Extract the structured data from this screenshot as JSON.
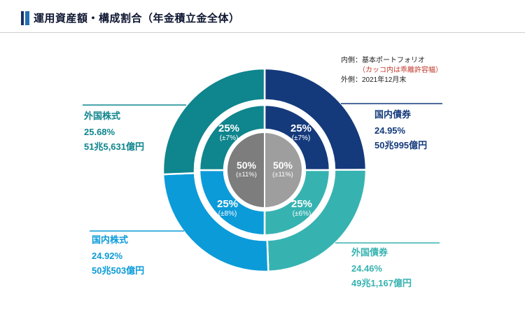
{
  "header": {
    "title": "運用資産額・構成割合（年金積立金全体）"
  },
  "legend": {
    "inner_note": "内側：基本ポートフォリオ",
    "deviation_note": "（カッコ内は乖離許容幅）",
    "outer_note": "外側：2021年12月末"
  },
  "colors": {
    "accent_dark": "#1a2f66",
    "accent_blue": "#2470b3",
    "deviation_note_red": "#c0392b"
  },
  "chart_data": {
    "type": "pie",
    "variant": "double-donut",
    "title": "運用資産額・構成割合（年金積立金全体）",
    "inner_ring_meaning": "基本ポートフォリオ（カッコ内は乖離許容幅）",
    "outer_ring_meaning": "2021年12月末",
    "segments": [
      {
        "name": "国内債券",
        "share": 24.95,
        "share_label": "24.95%",
        "amount": "50兆995億円",
        "target": 25,
        "target_label": "25%",
        "tolerance_label": "(±7%)",
        "color": "#143a7c"
      },
      {
        "name": "外国債券",
        "share": 24.46,
        "share_label": "24.46%",
        "amount": "49兆1,167億円",
        "target": 25,
        "target_label": "25%",
        "tolerance_label": "(±6%)",
        "color": "#36b3b1"
      },
      {
        "name": "国内株式",
        "share": 24.92,
        "share_label": "24.92%",
        "amount": "50兆503億円",
        "target": 25,
        "target_label": "25%",
        "tolerance_label": "(±8%)",
        "color": "#0c9bd9"
      },
      {
        "name": "外国株式",
        "share": 25.68,
        "share_label": "25.68%",
        "amount": "51兆5,631億円",
        "target": 25,
        "target_label": "25%",
        "tolerance_label": "(±7%)",
        "color": "#0f858d"
      }
    ],
    "center_halves": [
      {
        "side": "left",
        "value": 50,
        "value_label": "50%",
        "tolerance_label": "(±11%)",
        "color": "#7d7d7d"
      },
      {
        "side": "right",
        "value": 50,
        "value_label": "50%",
        "tolerance_label": "(±11%)",
        "color": "#9e9e9e"
      }
    ]
  }
}
